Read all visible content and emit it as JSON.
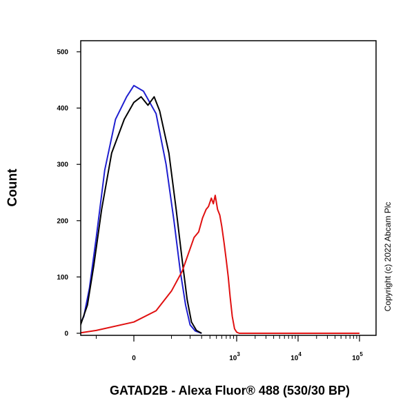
{
  "chart_data": {
    "type": "line",
    "title": "",
    "xlabel": "GATAD2B - Alexa Fluor® 488 (530/30 BP)",
    "ylabel": "Count",
    "x_scale": "logicle",
    "ylim": [
      0,
      500
    ],
    "y_ticks": [
      {
        "value": 0,
        "label": "0"
      },
      {
        "value": 100,
        "label": "100"
      },
      {
        "value": 200,
        "label": "200"
      },
      {
        "value": 300,
        "label": "300"
      },
      {
        "value": 400,
        "label": "400"
      },
      {
        "value": 500,
        "label": "500"
      }
    ],
    "x_ticks": [
      {
        "value": 0,
        "label": "0",
        "exp": ""
      },
      {
        "value": 1000,
        "label": "10",
        "exp": "3"
      },
      {
        "value": 10000,
        "label": "10",
        "exp": "4"
      },
      {
        "value": 100000,
        "label": "10",
        "exp": "5"
      }
    ],
    "grid": false,
    "legend": "none",
    "series": [
      {
        "color": "#1f1fd0",
        "points": [
          [
            -300,
            0
          ],
          [
            -250,
            2
          ],
          [
            -200,
            8
          ],
          [
            -160,
            30
          ],
          [
            -130,
            80
          ],
          [
            -100,
            170
          ],
          [
            -70,
            290
          ],
          [
            -40,
            380
          ],
          [
            -15,
            420
          ],
          [
            0,
            440
          ],
          [
            20,
            430
          ],
          [
            50,
            390
          ],
          [
            80,
            300
          ],
          [
            110,
            200
          ],
          [
            140,
            110
          ],
          [
            170,
            50
          ],
          [
            200,
            15
          ],
          [
            240,
            4
          ],
          [
            300,
            0
          ]
        ]
      },
      {
        "color": "#000000",
        "points": [
          [
            -280,
            0
          ],
          [
            -230,
            3
          ],
          [
            -180,
            15
          ],
          [
            -140,
            50
          ],
          [
            -110,
            120
          ],
          [
            -80,
            220
          ],
          [
            -50,
            320
          ],
          [
            -20,
            380
          ],
          [
            0,
            410
          ],
          [
            15,
            420
          ],
          [
            30,
            405
          ],
          [
            45,
            420
          ],
          [
            60,
            395
          ],
          [
            90,
            320
          ],
          [
            120,
            220
          ],
          [
            150,
            130
          ],
          [
            180,
            60
          ],
          [
            210,
            20
          ],
          [
            250,
            5
          ],
          [
            300,
            0
          ]
        ]
      },
      {
        "color": "#e01010",
        "points": [
          [
            -200,
            0
          ],
          [
            -100,
            5
          ],
          [
            0,
            20
          ],
          [
            50,
            40
          ],
          [
            100,
            75
          ],
          [
            150,
            110
          ],
          [
            200,
            150
          ],
          [
            230,
            170
          ],
          [
            270,
            180
          ],
          [
            310,
            205
          ],
          [
            350,
            220
          ],
          [
            380,
            225
          ],
          [
            420,
            240
          ],
          [
            450,
            230
          ],
          [
            480,
            245
          ],
          [
            520,
            220
          ],
          [
            560,
            210
          ],
          [
            600,
            190
          ],
          [
            650,
            160
          ],
          [
            700,
            130
          ],
          [
            750,
            100
          ],
          [
            800,
            65
          ],
          [
            860,
            30
          ],
          [
            930,
            8
          ],
          [
            1000,
            2
          ],
          [
            1100,
            0
          ],
          [
            100000,
            0
          ]
        ]
      }
    ]
  },
  "watermark": "Copyright (c) 2022 Abcam Plc"
}
